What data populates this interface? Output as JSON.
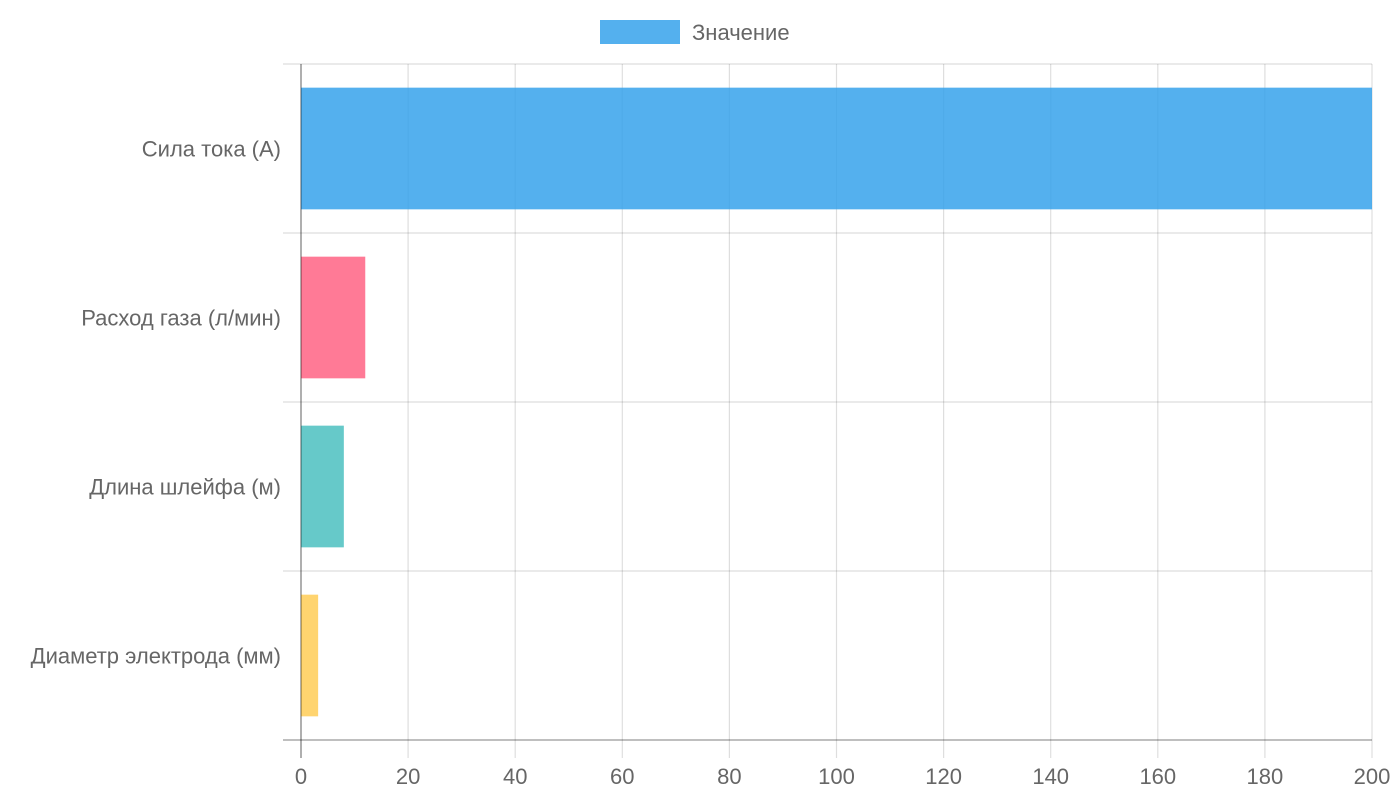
{
  "chart_data": {
    "type": "bar",
    "orientation": "horizontal",
    "categories": [
      "Сила тока (А)",
      "Расход газа (л/мин)",
      "Длина шлейфа (м)",
      "Диаметр электрода (мм)"
    ],
    "series": [
      {
        "name": "Значение",
        "values": [
          200,
          12,
          8,
          3.2
        ]
      }
    ],
    "xlim": [
      0,
      200
    ],
    "xticks": [
      0,
      20,
      40,
      60,
      80,
      100,
      120,
      140,
      160,
      180,
      200
    ],
    "grid": true,
    "legend_position": "top-center",
    "legend_color": "#36a2eb",
    "bar_colors": [
      "#36a2eb",
      "#ff6384",
      "#4bc0c0",
      "#ffcd56"
    ]
  }
}
